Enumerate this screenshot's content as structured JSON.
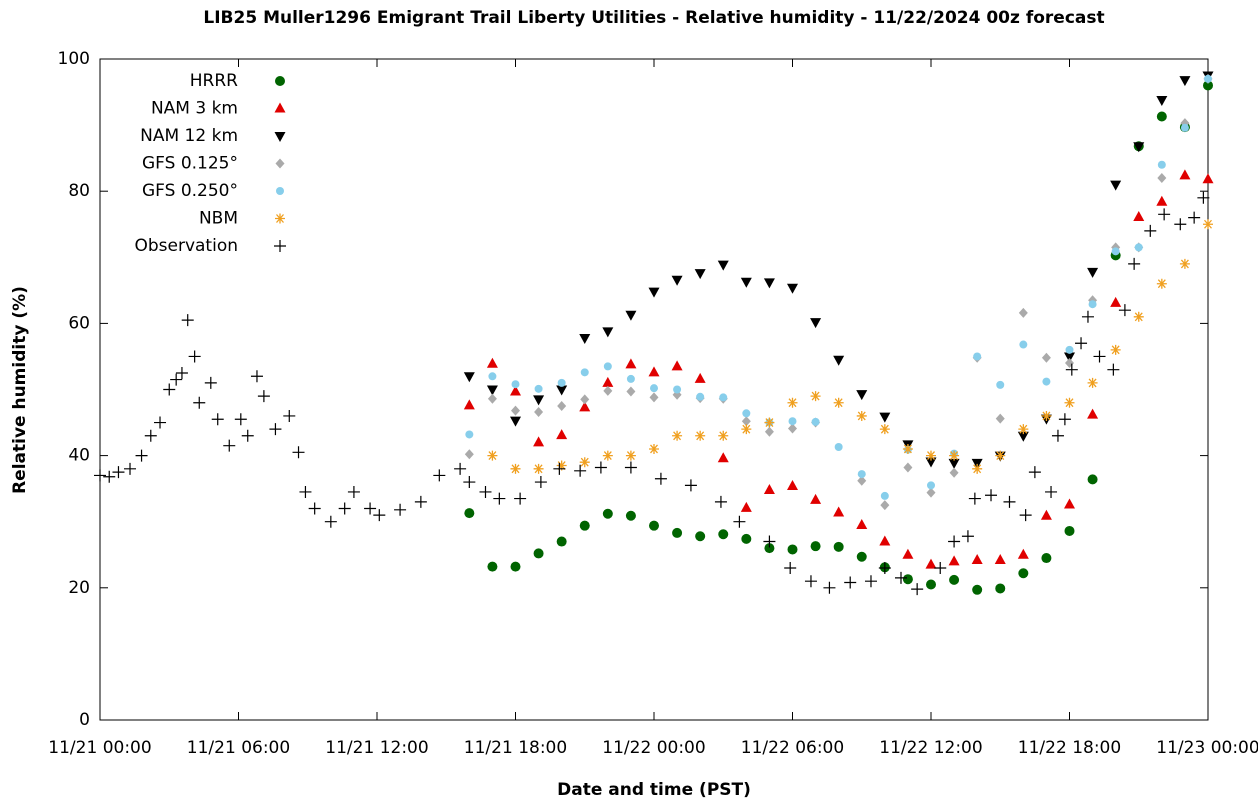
{
  "chart_data": {
    "type": "scatter",
    "title": "LIB25 Muller1296 Emigrant Trail Liberty Utilities - Relative humidity - 11/22/2024 00z forecast",
    "x_label": "Date and time (PST)",
    "y_label": "Relative humidity (%)",
    "xlim": [
      0,
      48
    ],
    "ylim": [
      0,
      100
    ],
    "xticks": [
      {
        "value": 0,
        "label": "11/21 00:00"
      },
      {
        "value": 6,
        "label": "11/21 06:00"
      },
      {
        "value": 12,
        "label": "11/21 12:00"
      },
      {
        "value": 18,
        "label": "11/21 18:00"
      },
      {
        "value": 24,
        "label": "11/22 00:00"
      },
      {
        "value": 30,
        "label": "11/22 06:00"
      },
      {
        "value": 36,
        "label": "11/22 12:00"
      },
      {
        "value": 42,
        "label": "11/22 18:00"
      },
      {
        "value": 48,
        "label": "11/23 00:00"
      }
    ],
    "yticks": [
      0,
      20,
      40,
      60,
      80,
      100
    ],
    "legend": "top-left",
    "series": [
      {
        "name": "HRRR",
        "color": "#006400",
        "marker": "circle",
        "x": [
          16,
          17,
          18,
          19,
          20,
          21,
          22,
          23,
          24,
          25,
          26,
          27,
          28,
          29,
          30,
          31,
          32,
          33,
          34,
          35,
          36,
          37,
          38,
          39,
          40,
          41,
          42,
          43,
          44,
          45,
          46,
          47,
          48
        ],
        "values": [
          31.3,
          23.2,
          23.2,
          25.2,
          27,
          29.4,
          31.2,
          30.9,
          29.4,
          28.3,
          27.8,
          28.1,
          27.4,
          26,
          25.8,
          26.3,
          26.2,
          24.7,
          23.1,
          21.3,
          20.5,
          21.2,
          19.7,
          19.9,
          22.2,
          24.5,
          28.6,
          36.4,
          70.3,
          86.8,
          91.3,
          89.7,
          96
        ]
      },
      {
        "name": "NAM 3 km",
        "color": "#e00000",
        "marker": "triangle-up",
        "x": [
          16,
          17,
          18,
          19,
          20,
          21,
          22,
          23,
          24,
          25,
          26,
          27,
          28,
          29,
          30,
          31,
          32,
          33,
          34,
          35,
          36,
          37,
          38,
          39,
          40,
          41,
          42,
          43,
          44,
          45,
          46,
          47,
          48
        ],
        "values": [
          47.6,
          53.9,
          49.7,
          42,
          43.1,
          47.3,
          51,
          53.8,
          52.6,
          53.5,
          51.6,
          39.6,
          32.1,
          34.8,
          35.4,
          33.3,
          31.4,
          29.5,
          27,
          25,
          23.5,
          24,
          24.2,
          24.2,
          25,
          30.9,
          32.6,
          46.2,
          63.1,
          76.1,
          78.4,
          82.4,
          81.8
        ]
      },
      {
        "name": "NAM 12 km",
        "color": "#000000",
        "marker": "triangle-down",
        "x": [
          16,
          17,
          18,
          19,
          20,
          21,
          22,
          23,
          24,
          25,
          26,
          27,
          28,
          29,
          30,
          31,
          32,
          33,
          34,
          35,
          36,
          37,
          38,
          39,
          40,
          41,
          42,
          43,
          44,
          45,
          46,
          47,
          48
        ],
        "values": [
          52,
          50,
          45.3,
          48.5,
          50,
          57.8,
          58.8,
          61.3,
          64.8,
          66.6,
          67.6,
          68.9,
          66.3,
          66.2,
          65.4,
          60.2,
          54.5,
          49.3,
          45.9,
          41.7,
          39.1,
          38.9,
          38.9,
          40,
          43,
          45.6,
          55,
          67.8,
          81,
          86.8,
          93.8,
          96.8,
          97.5
        ]
      },
      {
        "name": "GFS 0.125°",
        "color": "#aaaaaa",
        "marker": "diamond",
        "x": [
          16,
          17,
          18,
          19,
          20,
          21,
          22,
          23,
          24,
          25,
          26,
          27,
          28,
          29,
          30,
          31,
          33,
          34,
          35,
          36,
          37,
          38,
          39,
          40,
          41,
          42,
          43,
          44,
          45,
          46,
          47,
          48
        ],
        "values": [
          40.2,
          48.6,
          46.8,
          46.6,
          47.5,
          48.5,
          49.8,
          49.7,
          48.8,
          49.2,
          48.7,
          48.6,
          45.2,
          43.6,
          44.1,
          45,
          36.2,
          32.5,
          38.2,
          34.4,
          37.4,
          54.8,
          45.6,
          61.6,
          54.8,
          54,
          63.5,
          71.5,
          71.5,
          82,
          90.3,
          97
        ]
      },
      {
        "name": "GFS 0.250°",
        "color": "#87ceeb",
        "marker": "circle-small",
        "x": [
          16,
          17,
          18,
          19,
          20,
          21,
          22,
          23,
          24,
          25,
          26,
          27,
          28,
          29,
          30,
          31,
          32,
          33,
          34,
          35,
          36,
          37,
          38,
          39,
          40,
          41,
          42,
          43,
          44,
          45,
          46,
          47,
          48
        ],
        "values": [
          43.2,
          52,
          50.8,
          50.1,
          51,
          52.6,
          53.5,
          51.6,
          50.2,
          50,
          48.9,
          48.8,
          46.4,
          45,
          45.2,
          45.1,
          41.3,
          37.2,
          33.9,
          40.9,
          35.5,
          40.3,
          55,
          50.7,
          56.8,
          51.2,
          56,
          62.9,
          70.9,
          71.5,
          84,
          89.6,
          97
        ]
      },
      {
        "name": "NBM",
        "color": "#f0a020",
        "marker": "asterisk",
        "x": [
          17,
          18,
          19,
          20,
          21,
          22,
          23,
          24,
          25,
          26,
          27,
          28,
          29,
          30,
          31,
          32,
          33,
          34,
          35,
          36,
          37,
          38,
          39,
          40,
          41,
          42,
          43,
          44,
          45,
          46,
          47,
          48
        ],
        "values": [
          40,
          38,
          38,
          38.5,
          39,
          40,
          40,
          41,
          43,
          43,
          43,
          44,
          45,
          48,
          49,
          48,
          46,
          44,
          41,
          40,
          40,
          38,
          40,
          44,
          46,
          48,
          51,
          56,
          61,
          66,
          69,
          75
        ]
      },
      {
        "name": "Observation",
        "color": "#000000",
        "marker": "plus",
        "x": [
          0,
          0.4,
          0.8,
          1.3,
          1.8,
          2.2,
          2.6,
          3,
          3.3,
          3.55,
          3.8,
          4.1,
          4.3,
          4.8,
          5.1,
          5.6,
          6.1,
          6.4,
          6.8,
          7.1,
          7.6,
          8.2,
          8.6,
          8.9,
          9.3,
          10,
          10.6,
          11,
          11.7,
          12.1,
          13,
          13.9,
          14.7,
          15.6,
          16,
          16.7,
          17.3,
          18.2,
          19.1,
          19.9,
          20.8,
          21.7,
          23,
          24.3,
          25.6,
          26.9,
          27.7,
          29,
          29.9,
          30.8,
          31.6,
          32.5,
          33.4,
          34,
          34.7,
          35.4,
          36.4,
          37,
          37.6,
          37.9,
          38.6,
          39.4,
          40.1,
          40.5,
          41.2,
          41.5,
          41.8,
          42.1,
          42.5,
          42.8,
          43.3,
          43.9,
          44.4,
          44.8,
          45.5,
          46.1,
          46.8,
          47.4,
          47.8
        ],
        "values": [
          37,
          36.8,
          37.5,
          38,
          40,
          43,
          45,
          50,
          51.5,
          52.5,
          60.5,
          55,
          48,
          51,
          45.5,
          41.5,
          45.5,
          43,
          52,
          49,
          44,
          46,
          40.5,
          34.5,
          32,
          30,
          32,
          34.5,
          32,
          31,
          31.8,
          33,
          37,
          38,
          36,
          34.5,
          33.5,
          33.5,
          36,
          38,
          37.7,
          38.2,
          38.2,
          36.5,
          35.5,
          33,
          30,
          27,
          23,
          21,
          20,
          20.8,
          21,
          23,
          21.5,
          19.8,
          23,
          27,
          27.8,
          33.5,
          34,
          33,
          31,
          37.5,
          34.5,
          43,
          45.5,
          53,
          57,
          61,
          55,
          53,
          62,
          69,
          74,
          76.5,
          75,
          76,
          79
        ]
      }
    ]
  }
}
